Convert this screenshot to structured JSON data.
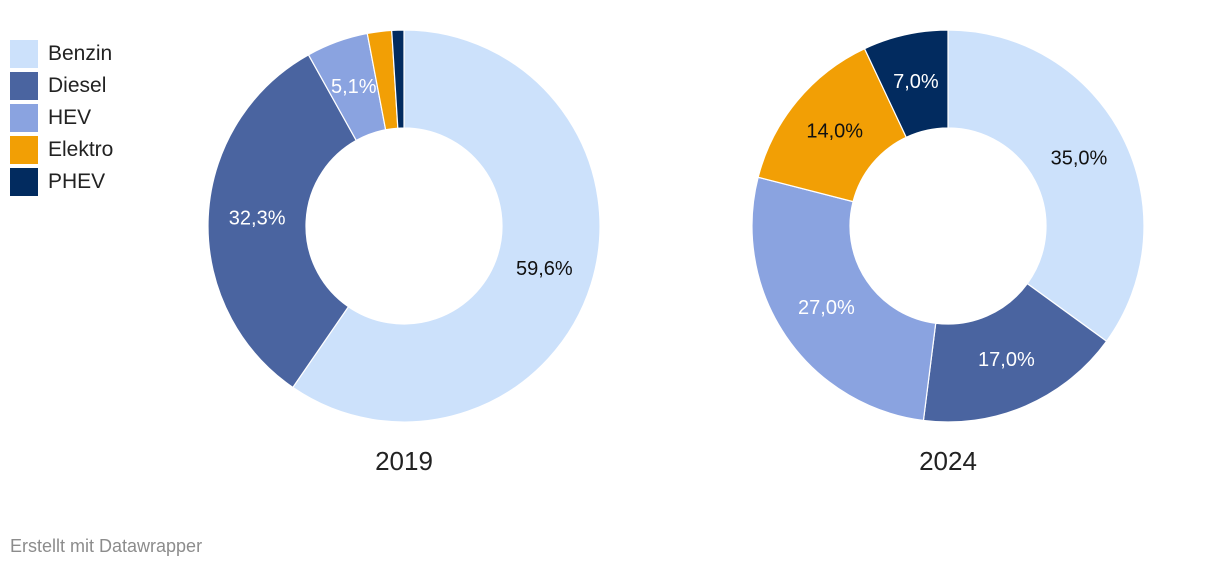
{
  "colors": {
    "Benzin": "#cce1fb",
    "Diesel": "#4a64a0",
    "HEV": "#8aa3e0",
    "Elektro": "#f29f05",
    "PHEV": "#022b5f"
  },
  "footer": "Erstellt mit Datawrapper",
  "chart_data": [
    {
      "type": "pie",
      "title": "2019",
      "categories": [
        "Benzin",
        "Diesel",
        "HEV",
        "Elektro",
        "PHEV"
      ],
      "values": [
        59.6,
        32.3,
        5.1,
        2.0,
        1.0
      ],
      "labels": [
        "59,6%",
        "32,3%",
        "5,1%",
        "",
        ""
      ],
      "legend": "top-left"
    },
    {
      "type": "pie",
      "title": "2024",
      "categories": [
        "Benzin",
        "Diesel",
        "HEV",
        "Elektro",
        "PHEV"
      ],
      "values": [
        35.0,
        17.0,
        27.0,
        14.0,
        7.0
      ],
      "labels": [
        "35,0%",
        "17,0%",
        "27,0%",
        "14,0%",
        "7,0%"
      ],
      "legend": "top-left"
    }
  ]
}
